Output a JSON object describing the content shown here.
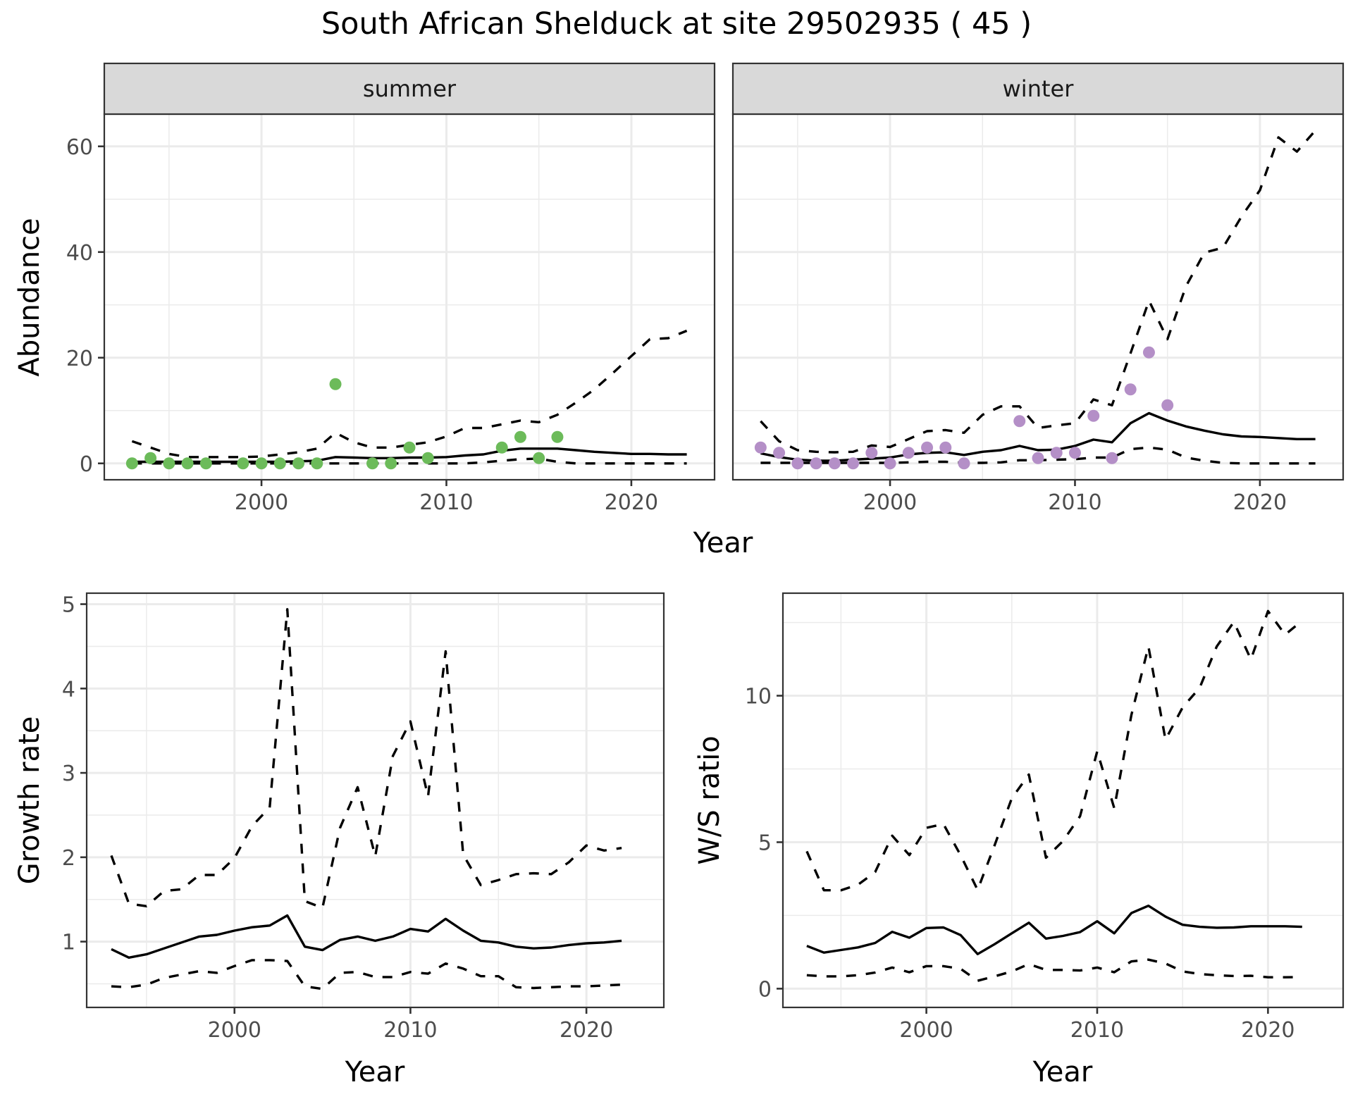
{
  "title": "South African Shelduck at site 29502935 ( 45 )",
  "chart_data": [
    {
      "id": "summer",
      "type": "line+scatter",
      "facet_label": "summer",
      "xlabel": "Year",
      "ylabel": "Abundance",
      "xlim": [
        1991.5,
        2024.5
      ],
      "ylim": [
        -3.1,
        66.1
      ],
      "xticks": [
        2000,
        2010,
        2020
      ],
      "xtick_labels": [
        "2000",
        "2010",
        "2020"
      ],
      "yticks": [
        0,
        20,
        40,
        60
      ],
      "ytick_labels": [
        "0",
        "20",
        "40",
        "60"
      ],
      "grid": true,
      "point_color": "#6cbb5a",
      "points": {
        "x": [
          1993,
          1994,
          1995,
          1996,
          1997,
          1999,
          2000,
          2001,
          2002,
          2003,
          2004,
          2006,
          2007,
          2008,
          2009,
          2013,
          2014,
          2015,
          2016
        ],
        "y": [
          0,
          1,
          0,
          0,
          0,
          0,
          0,
          0,
          0,
          0,
          15,
          0,
          0,
          3,
          1,
          3,
          5,
          1,
          5
        ]
      },
      "x": [
        1993,
        1994,
        1995,
        1996,
        1997,
        1998,
        1999,
        2000,
        2001,
        2002,
        2003,
        2004,
        2005,
        2006,
        2007,
        2008,
        2009,
        2010,
        2011,
        2012,
        2013,
        2014,
        2015,
        2016,
        2017,
        2018,
        2019,
        2020,
        2021,
        2022,
        2023
      ],
      "series": [
        {
          "name": "mean",
          "style": "solid",
          "values": [
            0.3,
            0.3,
            0.3,
            0.3,
            0.3,
            0.3,
            0.3,
            0.3,
            0.3,
            0.4,
            0.5,
            1.2,
            1.1,
            1.0,
            1.0,
            1.1,
            1.1,
            1.2,
            1.5,
            1.7,
            2.4,
            2.8,
            2.8,
            2.8,
            2.5,
            2.2,
            2.0,
            1.8,
            1.8,
            1.7,
            1.7
          ]
        },
        {
          "name": "upper",
          "style": "dashed",
          "values": [
            4.2,
            3.0,
            1.8,
            1.2,
            1.2,
            1.2,
            1.2,
            1.3,
            1.7,
            2.1,
            2.8,
            5.8,
            4.0,
            3.0,
            3.0,
            3.5,
            4.0,
            5.1,
            6.7,
            6.7,
            7.4,
            8.1,
            7.8,
            9.2,
            11.5,
            14.0,
            17.1,
            20.3,
            23.5,
            23.7,
            25.1
          ]
        },
        {
          "name": "lower",
          "style": "dashed",
          "values": [
            0,
            0,
            0,
            0,
            0,
            0,
            0,
            0,
            0,
            0,
            0,
            0,
            0,
            0,
            0,
            0,
            0,
            0,
            0,
            0.2,
            0.5,
            0.8,
            0.9,
            0.3,
            0,
            0,
            0,
            0,
            0,
            0,
            0
          ]
        }
      ]
    },
    {
      "id": "winter",
      "type": "line+scatter",
      "facet_label": "winter",
      "xlabel": "Year",
      "ylabel": "Abundance",
      "xlim": [
        1991.5,
        2024.5
      ],
      "ylim": [
        -3.1,
        66.1
      ],
      "xticks": [
        2000,
        2010,
        2020
      ],
      "xtick_labels": [
        "2000",
        "2010",
        "2020"
      ],
      "yticks": [
        0,
        20,
        40,
        60
      ],
      "ytick_labels": [
        "0",
        "20",
        "40",
        "60"
      ],
      "grid": true,
      "point_color": "#b48fc7",
      "points": {
        "x": [
          1993,
          1994,
          1995,
          1996,
          1997,
          1998,
          1999,
          2000,
          2001,
          2002,
          2003,
          2004,
          2007,
          2008,
          2009,
          2010,
          2011,
          2012,
          2013,
          2014,
          2015
        ],
        "y": [
          3,
          2,
          0,
          0,
          0,
          0,
          2,
          0,
          2,
          3,
          3,
          0,
          8,
          1,
          2,
          2,
          9,
          1,
          14,
          21,
          11
        ]
      },
      "x": [
        1993,
        1994,
        1995,
        1996,
        1997,
        1998,
        1999,
        2000,
        2001,
        2002,
        2003,
        2004,
        2005,
        2006,
        2007,
        2008,
        2009,
        2010,
        2011,
        2012,
        2013,
        2014,
        2015,
        2016,
        2017,
        2018,
        2019,
        2020,
        2021,
        2022,
        2023
      ],
      "series": [
        {
          "name": "mean",
          "style": "solid",
          "values": [
            1.9,
            1.2,
            0.7,
            0.5,
            0.5,
            0.7,
            0.9,
            1.1,
            1.7,
            2.0,
            2.1,
            1.6,
            2.2,
            2.5,
            3.3,
            2.5,
            2.6,
            3.3,
            4.5,
            4.0,
            7.6,
            9.5,
            8.1,
            7.0,
            6.2,
            5.5,
            5.1,
            5.0,
            4.8,
            4.6,
            4.6
          ]
        },
        {
          "name": "upper",
          "style": "dashed",
          "values": [
            8.0,
            4.2,
            2.5,
            2.2,
            2.1,
            2.2,
            3.4,
            3.1,
            4.6,
            6.1,
            6.3,
            5.8,
            9.2,
            10.8,
            10.8,
            6.7,
            7.2,
            7.6,
            12.1,
            11.0,
            20.8,
            30.8,
            23.5,
            33.5,
            39.9,
            40.8,
            46.7,
            51.7,
            61.7,
            59.0,
            63.0
          ]
        },
        {
          "name": "lower",
          "style": "dashed",
          "values": [
            0.1,
            0.1,
            0.1,
            0.1,
            0.1,
            0.1,
            0.1,
            0.1,
            0.2,
            0.3,
            0.3,
            0.1,
            0.1,
            0.2,
            0.6,
            0.6,
            0.7,
            0.8,
            1.1,
            1.1,
            2.7,
            3.0,
            2.6,
            1.1,
            0.5,
            0.1,
            0,
            0,
            0,
            0,
            0
          ]
        }
      ]
    },
    {
      "id": "growth",
      "type": "line",
      "xlabel": "Year",
      "ylabel": "Growth rate",
      "xlim": [
        1991.6,
        2024.4
      ],
      "ylim": [
        0.22,
        5.13
      ],
      "xticks": [
        2000,
        2010,
        2020
      ],
      "xtick_labels": [
        "2000",
        "2010",
        "2020"
      ],
      "yticks": [
        1,
        2,
        3,
        4,
        5
      ],
      "ytick_labels": [
        "1",
        "2",
        "3",
        "4",
        "5"
      ],
      "grid": true,
      "x": [
        1993,
        1994,
        1995,
        1996,
        1997,
        1998,
        1999,
        2000,
        2001,
        2002,
        2003,
        2004,
        2005,
        2006,
        2007,
        2008,
        2009,
        2010,
        2011,
        2012,
        2013,
        2014,
        2015,
        2016,
        2017,
        2018,
        2019,
        2020,
        2021,
        2022
      ],
      "series": [
        {
          "name": "mean",
          "style": "solid",
          "values": [
            0.91,
            0.81,
            0.85,
            0.92,
            0.99,
            1.06,
            1.08,
            1.13,
            1.17,
            1.19,
            1.31,
            0.94,
            0.9,
            1.02,
            1.06,
            1.01,
            1.06,
            1.15,
            1.12,
            1.27,
            1.13,
            1.01,
            0.99,
            0.94,
            0.92,
            0.93,
            0.96,
            0.98,
            0.99,
            1.01
          ]
        },
        {
          "name": "upper",
          "style": "dashed",
          "values": [
            2.02,
            1.45,
            1.42,
            1.6,
            1.62,
            1.79,
            1.79,
            1.99,
            2.37,
            2.59,
            4.94,
            1.48,
            1.4,
            2.35,
            2.83,
            2.01,
            3.2,
            3.61,
            2.72,
            4.44,
            2.03,
            1.67,
            1.73,
            1.8,
            1.81,
            1.8,
            1.94,
            2.14,
            2.08,
            2.11
          ]
        },
        {
          "name": "lower",
          "style": "dashed",
          "values": [
            0.47,
            0.46,
            0.49,
            0.57,
            0.61,
            0.65,
            0.63,
            0.71,
            0.78,
            0.78,
            0.77,
            0.47,
            0.44,
            0.63,
            0.64,
            0.58,
            0.58,
            0.64,
            0.62,
            0.74,
            0.68,
            0.59,
            0.59,
            0.46,
            0.45,
            0.46,
            0.47,
            0.47,
            0.48,
            0.49
          ]
        }
      ]
    },
    {
      "id": "ws_ratio",
      "type": "line",
      "xlabel": "Year",
      "ylabel": "W/S ratio",
      "xlim": [
        1991.6,
        2024.4
      ],
      "ylim": [
        -0.64,
        13.5
      ],
      "xticks": [
        2000,
        2010,
        2020
      ],
      "xtick_labels": [
        "2000",
        "2010",
        "2020"
      ],
      "yticks": [
        0,
        5,
        10
      ],
      "ytick_labels": [
        "0",
        "5",
        "10"
      ],
      "grid": true,
      "x": [
        1993,
        1994,
        1995,
        1996,
        1997,
        1998,
        1999,
        2000,
        2001,
        2002,
        2003,
        2004,
        2005,
        2006,
        2007,
        2008,
        2009,
        2010,
        2011,
        2012,
        2013,
        2014,
        2015,
        2016,
        2017,
        2018,
        2019,
        2020,
        2021,
        2022
      ],
      "series": [
        {
          "name": "mean",
          "style": "solid",
          "values": [
            1.46,
            1.23,
            1.32,
            1.41,
            1.56,
            1.94,
            1.74,
            2.07,
            2.09,
            1.83,
            1.18,
            1.52,
            1.89,
            2.25,
            1.71,
            1.8,
            1.93,
            2.3,
            1.89,
            2.58,
            2.83,
            2.46,
            2.18,
            2.11,
            2.08,
            2.09,
            2.13,
            2.13,
            2.13,
            2.11
          ]
        },
        {
          "name": "upper",
          "style": "dashed",
          "values": [
            4.69,
            3.36,
            3.36,
            3.55,
            3.98,
            5.22,
            4.56,
            5.49,
            5.62,
            4.56,
            3.37,
            4.9,
            6.5,
            7.31,
            4.47,
            5.04,
            5.89,
            8.1,
            6.16,
            9.34,
            11.68,
            8.5,
            9.6,
            10.27,
            11.68,
            12.52,
            11.24,
            12.89,
            12.08,
            12.56
          ]
        },
        {
          "name": "lower",
          "style": "dashed",
          "values": [
            0.46,
            0.42,
            0.42,
            0.46,
            0.55,
            0.72,
            0.56,
            0.77,
            0.77,
            0.68,
            0.27,
            0.42,
            0.59,
            0.84,
            0.64,
            0.64,
            0.62,
            0.72,
            0.56,
            0.93,
            0.99,
            0.86,
            0.59,
            0.5,
            0.46,
            0.43,
            0.44,
            0.39,
            0.39,
            0.4
          ]
        }
      ]
    }
  ]
}
